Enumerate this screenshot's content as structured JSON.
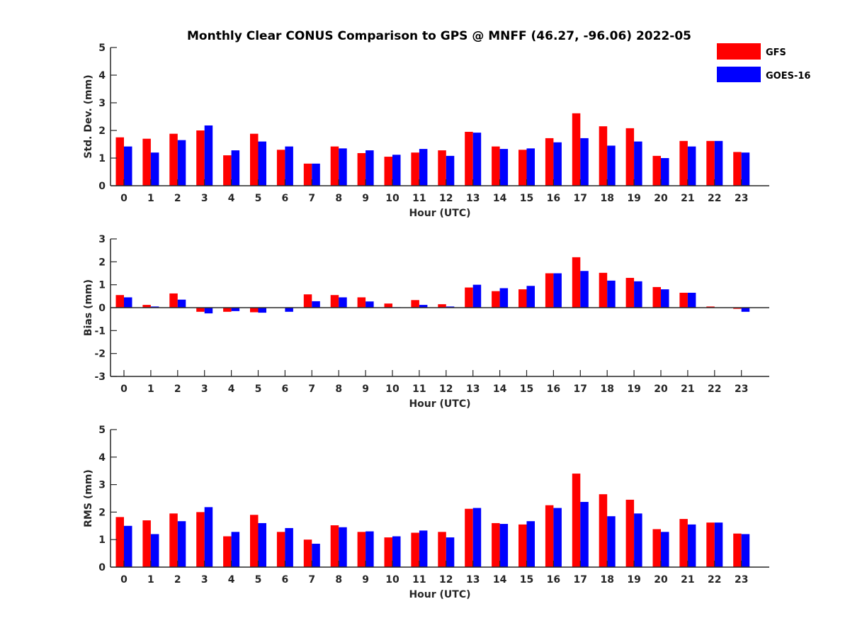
{
  "title": "Monthly Clear CONUS Comparison to GPS @ MNFF (46.27, -96.06) 2022-05",
  "colors": {
    "GFS": "#ff0000",
    "GOES-16": "#0000ff",
    "axis": "#262626"
  },
  "legend": {
    "placement": "top-right",
    "entries": [
      "GFS",
      "GOES-16"
    ]
  },
  "chart_data": [
    {
      "type": "bar",
      "xlabel": "Hour (UTC)",
      "ylabel": "Std. Dev. (mm)",
      "ylim": [
        0,
        5
      ],
      "yticks": [
        0,
        1,
        2,
        3,
        4,
        5
      ],
      "categories": [
        "0",
        "1",
        "2",
        "3",
        "4",
        "5",
        "6",
        "7",
        "8",
        "9",
        "10",
        "11",
        "12",
        "13",
        "14",
        "15",
        "16",
        "17",
        "18",
        "19",
        "20",
        "21",
        "22",
        "23"
      ],
      "grid": false,
      "series": [
        {
          "name": "GFS",
          "values": [
            1.75,
            1.7,
            1.88,
            2.0,
            1.1,
            1.88,
            1.3,
            0.8,
            1.42,
            1.18,
            1.05,
            1.2,
            1.28,
            1.95,
            1.42,
            1.3,
            1.72,
            2.62,
            2.15,
            2.08,
            1.08,
            1.62,
            1.62,
            1.22
          ]
        },
        {
          "name": "GOES-16",
          "values": [
            1.42,
            1.2,
            1.65,
            2.18,
            1.28,
            1.6,
            1.42,
            0.8,
            1.35,
            1.28,
            1.12,
            1.33,
            1.08,
            1.92,
            1.33,
            1.35,
            1.57,
            1.72,
            1.45,
            1.6,
            1.0,
            1.42,
            1.62,
            1.2
          ]
        }
      ]
    },
    {
      "type": "bar",
      "xlabel": "Hour (UTC)",
      "ylabel": "Bias (mm)",
      "ylim": [
        -3,
        3
      ],
      "yticks": [
        -3,
        -2,
        -1,
        0,
        1,
        2,
        3
      ],
      "categories": [
        "0",
        "1",
        "2",
        "3",
        "4",
        "5",
        "6",
        "7",
        "8",
        "9",
        "10",
        "11",
        "12",
        "13",
        "14",
        "15",
        "16",
        "17",
        "18",
        "19",
        "20",
        "21",
        "22",
        "23"
      ],
      "grid": false,
      "series": [
        {
          "name": "GFS",
          "values": [
            0.55,
            0.12,
            0.62,
            -0.18,
            -0.18,
            -0.2,
            0.0,
            0.58,
            0.55,
            0.45,
            0.18,
            0.33,
            0.15,
            0.88,
            0.72,
            0.8,
            1.5,
            2.2,
            1.52,
            1.3,
            0.9,
            0.65,
            0.05,
            -0.05
          ]
        },
        {
          "name": "GOES-16",
          "values": [
            0.45,
            0.05,
            0.35,
            -0.25,
            -0.15,
            -0.22,
            -0.18,
            0.28,
            0.45,
            0.27,
            0.02,
            0.12,
            0.05,
            1.0,
            0.85,
            0.95,
            1.5,
            1.6,
            1.18,
            1.15,
            0.8,
            0.65,
            0.0,
            -0.18
          ]
        }
      ]
    },
    {
      "type": "bar",
      "xlabel": "Hour (UTC)",
      "ylabel": "RMS (mm)",
      "ylim": [
        0,
        5
      ],
      "yticks": [
        0,
        1,
        2,
        3,
        4,
        5
      ],
      "categories": [
        "0",
        "1",
        "2",
        "3",
        "4",
        "5",
        "6",
        "7",
        "8",
        "9",
        "10",
        "11",
        "12",
        "13",
        "14",
        "15",
        "16",
        "17",
        "18",
        "19",
        "20",
        "21",
        "22",
        "23"
      ],
      "grid": false,
      "series": [
        {
          "name": "GFS",
          "values": [
            1.82,
            1.7,
            1.95,
            2.0,
            1.12,
            1.9,
            1.28,
            1.0,
            1.52,
            1.28,
            1.08,
            1.25,
            1.28,
            2.12,
            1.6,
            1.55,
            2.25,
            3.4,
            2.65,
            2.45,
            1.38,
            1.75,
            1.62,
            1.22
          ]
        },
        {
          "name": "GOES-16",
          "values": [
            1.5,
            1.2,
            1.67,
            2.18,
            1.28,
            1.6,
            1.42,
            0.85,
            1.45,
            1.3,
            1.12,
            1.33,
            1.08,
            2.15,
            1.57,
            1.67,
            2.15,
            2.37,
            1.85,
            1.95,
            1.28,
            1.55,
            1.62,
            1.2
          ]
        }
      ]
    }
  ]
}
